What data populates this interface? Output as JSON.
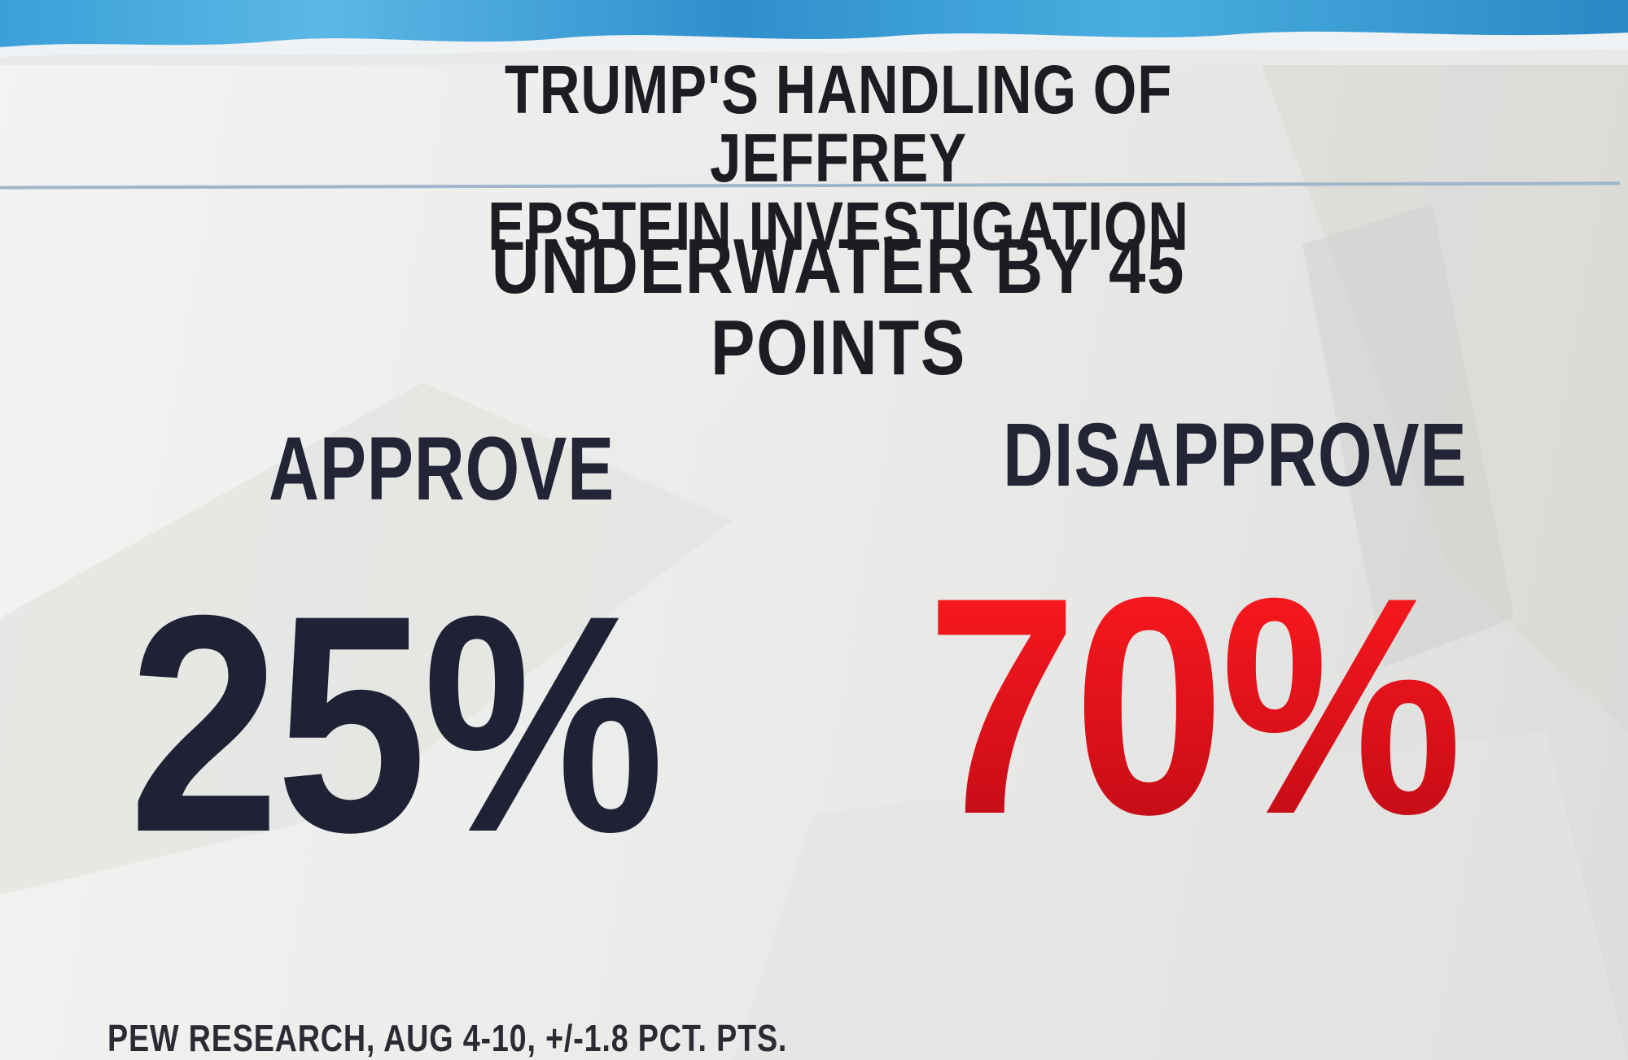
{
  "header": {
    "title_line1": "TRUMP'S HANDLING OF JEFFREY",
    "title_line2": "EPSTEIN INVESTIGATION",
    "subtitle": "UNDERWATER BY 45 POINTS"
  },
  "stats": {
    "approve": {
      "label": "APPROVE",
      "value": "25%",
      "color": "#1f2235"
    },
    "disapprove": {
      "label": "DISAPPROVE",
      "value": "70%",
      "color": "#e0141c"
    }
  },
  "footer": {
    "source": "PEW RESEARCH, AUG 4-10, +/-1.8 PCT. PTS."
  },
  "colors": {
    "banner": "#3aa0d8",
    "background": "#ececea",
    "text": "#1c1c22",
    "divider": "#9fb5c8"
  }
}
